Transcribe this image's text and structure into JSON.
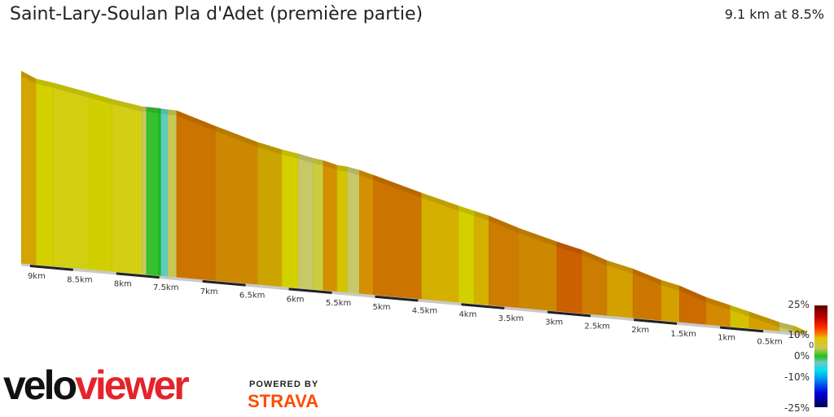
{
  "header": {
    "title": "Saint-Lary-Soulan Pla d'Adet (première partie)",
    "summary": "9.1 km at 8.5%"
  },
  "chart_data": {
    "type": "area",
    "title": "Saint-Lary-Soulan Pla d'Adet (première partie)",
    "xlabel": "",
    "ylabel": "",
    "x_reversed": true,
    "xlim_km": [
      0,
      9.1
    ],
    "x_ticks": [
      "9km",
      "8.5km",
      "8km",
      "7.5km",
      "7km",
      "6.5km",
      "6km",
      "5.5km",
      "5km",
      "4.5km",
      "4km",
      "3.5km",
      "3km",
      "2.5km",
      "2km",
      "1.5km",
      "1km",
      "0.5km",
      "0km"
    ],
    "x_tick_values": [
      9,
      8.5,
      8,
      7.5,
      7,
      6.5,
      6,
      5.5,
      5,
      4.5,
      4,
      3.5,
      3,
      2.5,
      2,
      1.5,
      1,
      0.5,
      0
    ],
    "profile_points": [
      {
        "km": 9.1,
        "elev_m": 771
      },
      {
        "km": 8.93,
        "elev_m": 745
      },
      {
        "km": 8.73,
        "elev_m": 735
      },
      {
        "km": 8.31,
        "elev_m": 708
      },
      {
        "km": 8.05,
        "elev_m": 690
      },
      {
        "km": 7.7,
        "elev_m": 671
      },
      {
        "km": 7.65,
        "elev_m": 671
      },
      {
        "km": 7.51,
        "elev_m": 670
      },
      {
        "km": 7.48,
        "elev_m": 669
      },
      {
        "km": 7.4,
        "elev_m": 668
      },
      {
        "km": 7.3,
        "elev_m": 667
      },
      {
        "km": 6.85,
        "elev_m": 618
      },
      {
        "km": 6.36,
        "elev_m": 568
      },
      {
        "km": 6.08,
        "elev_m": 547
      },
      {
        "km": 5.89,
        "elev_m": 536
      },
      {
        "km": 5.72,
        "elev_m": 524
      },
      {
        "km": 5.6,
        "elev_m": 518
      },
      {
        "km": 5.44,
        "elev_m": 504
      },
      {
        "km": 5.32,
        "elev_m": 501
      },
      {
        "km": 5.18,
        "elev_m": 492
      },
      {
        "km": 5.02,
        "elev_m": 477
      },
      {
        "km": 4.46,
        "elev_m": 422
      },
      {
        "km": 4.03,
        "elev_m": 383
      },
      {
        "km": 3.85,
        "elev_m": 368
      },
      {
        "km": 3.68,
        "elev_m": 354
      },
      {
        "km": 3.34,
        "elev_m": 315
      },
      {
        "km": 2.89,
        "elev_m": 273
      },
      {
        "km": 2.6,
        "elev_m": 249
      },
      {
        "km": 2.31,
        "elev_m": 215
      },
      {
        "km": 2.01,
        "elev_m": 191
      },
      {
        "km": 1.68,
        "elev_m": 155
      },
      {
        "km": 1.47,
        "elev_m": 139
      },
      {
        "km": 1.16,
        "elev_m": 102
      },
      {
        "km": 0.88,
        "elev_m": 78
      },
      {
        "km": 0.66,
        "elev_m": 59
      },
      {
        "km": 0.31,
        "elev_m": 27
      },
      {
        "km": 0.14,
        "elev_m": 18
      },
      {
        "km": 0,
        "elev_m": 0
      }
    ],
    "segment_colors": [
      "#d4a400",
      "#d4d000",
      "#d2cf10",
      "#d2cf00",
      "#d3cf14",
      "#c8c860",
      "#38c030",
      "#18c020",
      "#60ccc0",
      "#c8c858",
      "#cc7400",
      "#cc8800",
      "#cca400",
      "#d4d000",
      "#c8c868",
      "#cccc40",
      "#d49000",
      "#d4c400",
      "#c8c868",
      "#d49000",
      "#cc7400",
      "#d4b000",
      "#d4d000",
      "#d4b000",
      "#cc7c00",
      "#cc8800",
      "#cc6000",
      "#cc7c00",
      "#d4a000",
      "#cc7800",
      "#d4a000",
      "#cc6c00",
      "#d48a00",
      "#d4c000",
      "#d4a000",
      "#c8c860",
      "#d4c400"
    ],
    "legend": {
      "type": "colorbar",
      "labels": [
        "25%",
        "10%",
        "0%",
        "-10%",
        "-25%"
      ],
      "placement": "bottom-right"
    }
  },
  "branding": {
    "logo_velo": "velo",
    "logo_viewer": "viewer",
    "powered_by": "POWERED BY",
    "strava": "STRAVA",
    "strava_color": "#fc4c02",
    "viewer_color": "#e4232b"
  }
}
